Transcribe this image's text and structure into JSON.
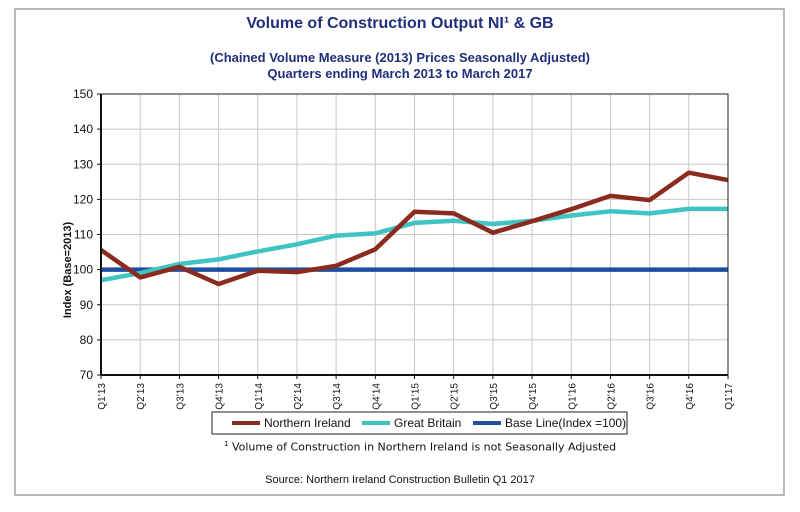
{
  "title": "Volume of Construction Output NI¹ & GB",
  "subtitle_line1": "(Chained Volume Measure (2013)  Prices Seasonally Adjusted)",
  "subtitle_line2": "Quarters ending March 2013 to March 2017",
  "footnote_marker": "1",
  "footnote_text": " Volume of Construction in Northern Ireland is not Seasonally Adjusted",
  "source": "Source: Northern Ireland Construction Bulletin Q1 2017",
  "chart_data": {
    "type": "line",
    "title": "Volume of Construction Output NI¹ & GB",
    "xlabel": "",
    "ylabel": "Index (Base=2013)",
    "ylim": [
      70,
      150
    ],
    "yticks": [
      70,
      80,
      90,
      100,
      110,
      120,
      130,
      140,
      150
    ],
    "grid": true,
    "legend_position": "bottom",
    "categories": [
      "Q1''13",
      "Q2''13",
      "Q3''13",
      "Q4''13",
      "Q1''14",
      "Q2''14",
      "Q3''14",
      "Q4''14",
      "Q1''15",
      "Q2''15",
      "Q3''15",
      "Q4''15",
      "Q1''16",
      "Q2''16",
      "Q3''16",
      "Q4''16",
      "Q1''17"
    ],
    "series": [
      {
        "name": "Northern Ireland",
        "color": "#8b2a1e",
        "values": [
          105.6,
          97.8,
          100.8,
          95.9,
          99.7,
          99.3,
          101.1,
          105.8,
          116.5,
          116.0,
          110.5,
          113.8,
          117.2,
          121.0,
          119.8,
          127.6,
          125.5
        ]
      },
      {
        "name": "Great Britain",
        "color": "#3fc3c3",
        "values": [
          97.0,
          99.0,
          101.6,
          102.9,
          105.2,
          107.2,
          109.7,
          110.3,
          113.3,
          113.9,
          113.0,
          113.9,
          115.4,
          116.6,
          116.0,
          117.3,
          117.3
        ]
      },
      {
        "name": "Base Line(Index =100)",
        "color": "#1f4fa0",
        "values": [
          100,
          100,
          100,
          100,
          100,
          100,
          100,
          100,
          100,
          100,
          100,
          100,
          100,
          100,
          100,
          100,
          100
        ]
      }
    ]
  }
}
